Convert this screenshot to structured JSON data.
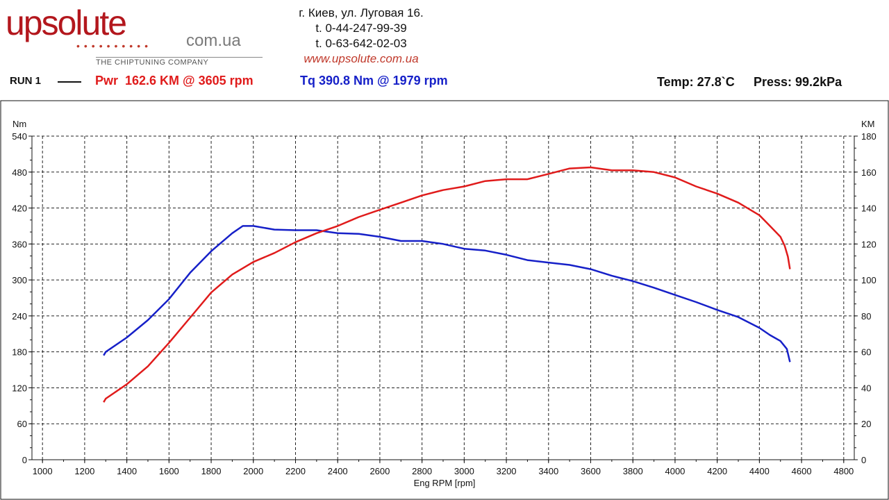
{
  "header": {
    "logo_main": "upsolute",
    "logo_domain": "com.ua",
    "logo_tagline": "THE CHIPTUNING COMPANY",
    "address": "г. Киев, ул. Луговая 16.",
    "phone1": "t. 0-44-247-99-39",
    "phone2": "t. 0-63-642-02-03",
    "website": "www.upsolute.com.ua"
  },
  "run": {
    "label": "RUN 1",
    "power_text": "Pwr  162.6 KM @ 3605 rpm",
    "torque_text": "Tq 390.8 Nm @ 1979 rpm",
    "temp_text": "Temp: 27.8`C",
    "press_text": "Press: 99.2kPa"
  },
  "chart_data": {
    "type": "line",
    "xlabel": "Eng RPM [rpm]",
    "ylabel_left": "Nm",
    "ylabel_right": "KM",
    "xlim": [
      950,
      4850
    ],
    "ylim_left": [
      0,
      540
    ],
    "ylim_right": [
      0,
      180
    ],
    "xticks": [
      1000,
      1200,
      1400,
      1600,
      1800,
      2000,
      2200,
      2400,
      2600,
      2800,
      3000,
      3200,
      3400,
      3600,
      3800,
      4000,
      4200,
      4400,
      4600,
      4800
    ],
    "yticks_left": [
      0,
      60,
      120,
      180,
      240,
      300,
      360,
      420,
      480,
      540
    ],
    "yticks_right": [
      0,
      20,
      40,
      60,
      80,
      100,
      120,
      140,
      160,
      180
    ],
    "grid": true,
    "colors": {
      "torque": "#1620c8",
      "power": "#e01b1b"
    },
    "series": [
      {
        "name": "Tq",
        "axis": "left",
        "x": [
          1290,
          1300,
          1400,
          1500,
          1600,
          1700,
          1800,
          1900,
          1950,
          2000,
          2100,
          2200,
          2300,
          2400,
          2500,
          2600,
          2700,
          2800,
          2900,
          3000,
          3100,
          3200,
          3300,
          3400,
          3500,
          3600,
          3700,
          3800,
          3900,
          4000,
          4100,
          4200,
          4300,
          4400,
          4450,
          4500,
          4530,
          4545
        ],
        "y": [
          174,
          180,
          204,
          233,
          268,
          312,
          348,
          378,
          390,
          390,
          384,
          383,
          383,
          378,
          377,
          372,
          365,
          365,
          360,
          352,
          349,
          342,
          333,
          329,
          325,
          318,
          307,
          298,
          287,
          275,
          263,
          250,
          238,
          220,
          208,
          198,
          185,
          163
        ]
      },
      {
        "name": "Pwr",
        "axis": "right",
        "x": [
          1290,
          1300,
          1400,
          1500,
          1600,
          1700,
          1800,
          1900,
          2000,
          2100,
          2200,
          2300,
          2400,
          2500,
          2600,
          2700,
          2800,
          2900,
          3000,
          3100,
          3200,
          3300,
          3400,
          3500,
          3600,
          3700,
          3800,
          3900,
          4000,
          4100,
          4200,
          4300,
          4400,
          4450,
          4500,
          4520,
          4535,
          4545
        ],
        "y": [
          32,
          34,
          42,
          52,
          65,
          79,
          93,
          103,
          110,
          115,
          121,
          126,
          130,
          135,
          139,
          143,
          147,
          150,
          152,
          155,
          156,
          156,
          159,
          162,
          162.6,
          161,
          161,
          160,
          157,
          152,
          148,
          143,
          136,
          130,
          124,
          119,
          113,
          106
        ]
      }
    ]
  }
}
